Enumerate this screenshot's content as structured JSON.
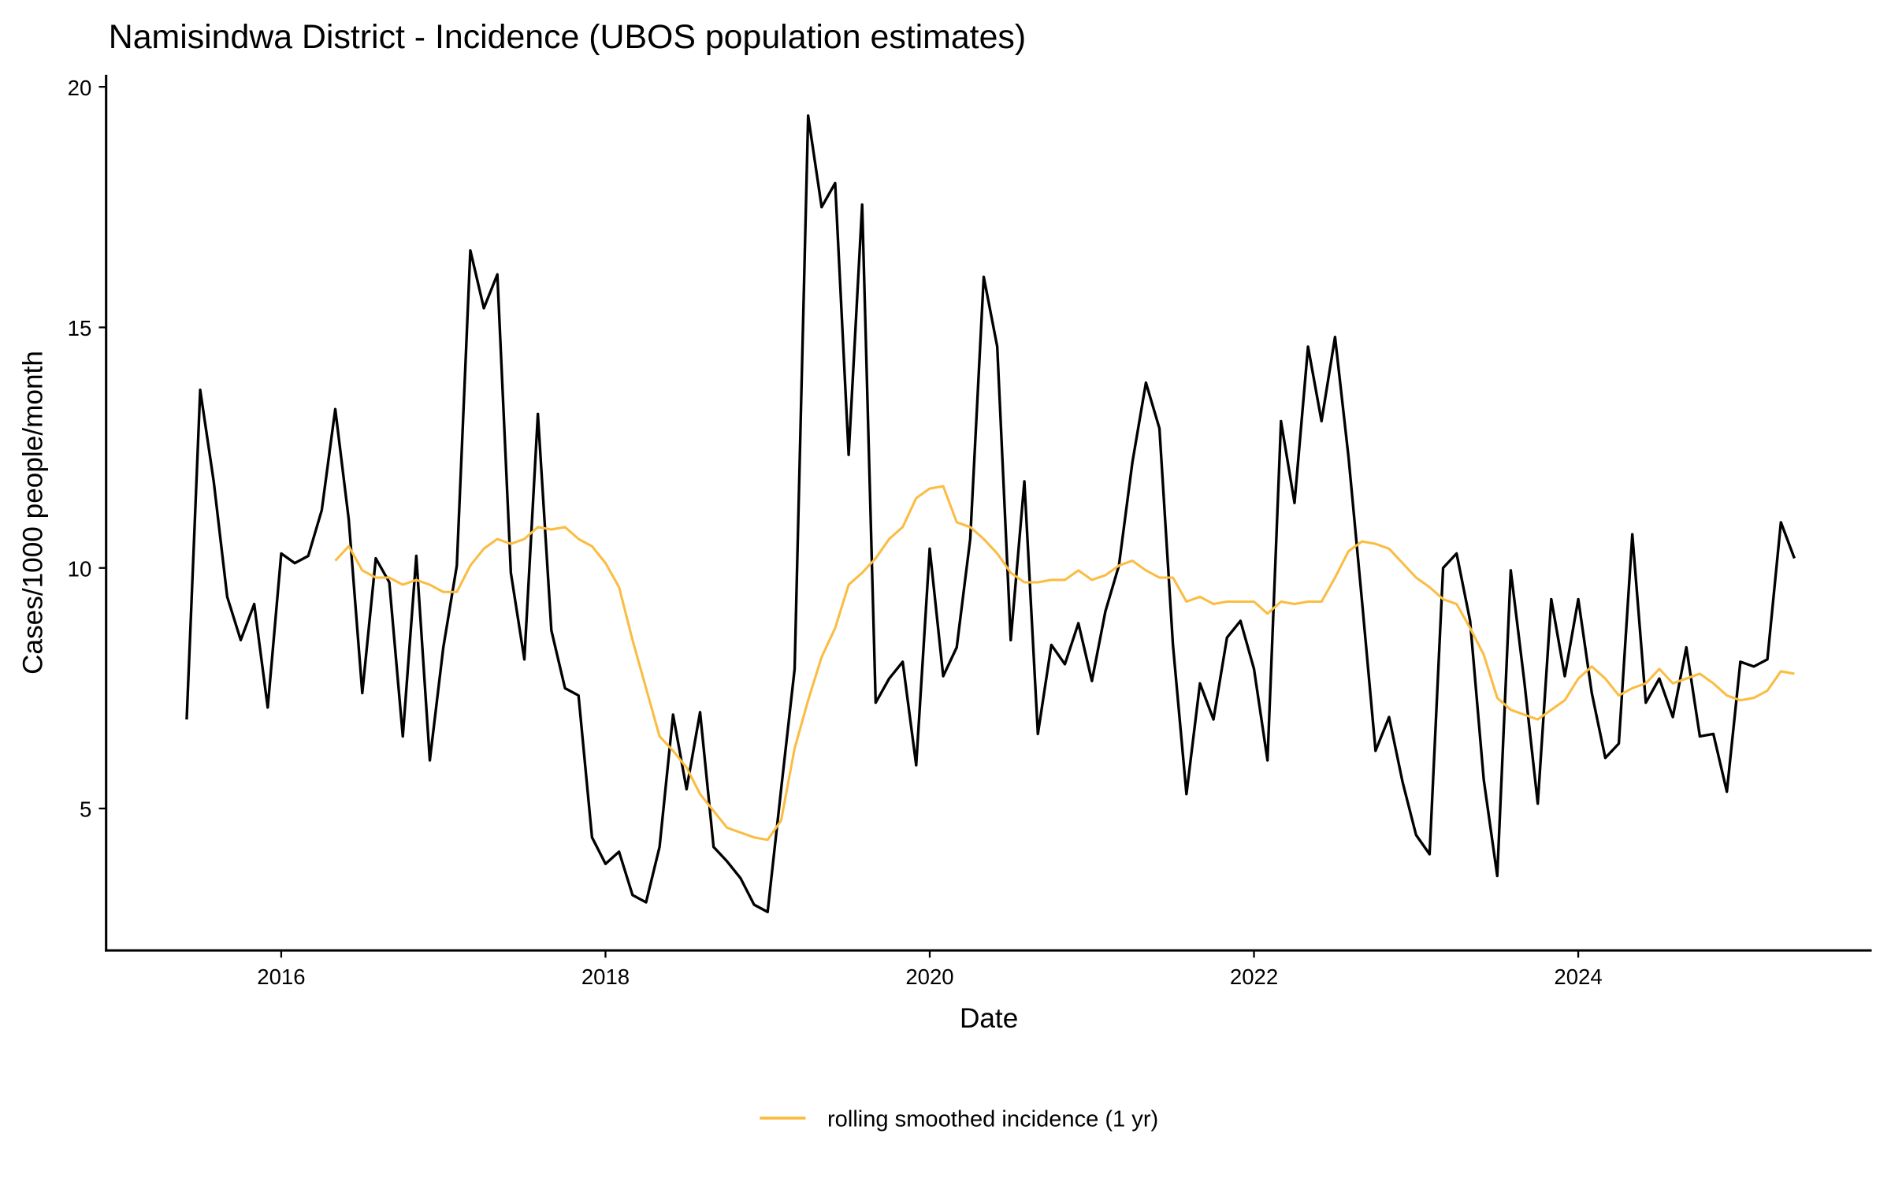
{
  "chart_data": {
    "type": "line",
    "title": "Namisindwa District - Incidence (UBOS population estimates)",
    "xlabel": "Date",
    "ylabel": "Cases/1000 people/month",
    "xlim": [
      2014.92,
      2025.81
    ],
    "ylim": [
      2.05,
      20.25
    ],
    "x_ticks": [
      2016,
      2018,
      2020,
      2022,
      2024
    ],
    "x_tick_labels": [
      "2016",
      "2018",
      "2020",
      "2022",
      "2024"
    ],
    "y_ticks": [
      5,
      10,
      15,
      20
    ],
    "y_tick_labels": [
      "5",
      "10",
      "15",
      "20"
    ],
    "grid": false,
    "legend_position": "bottom",
    "series": [
      {
        "name": "incidence",
        "color": "#000000",
        "in_legend": false,
        "start": "2015-06",
        "frequency": "monthly",
        "values": [
          6.85,
          13.7,
          11.8,
          9.4,
          8.5,
          9.25,
          7.1,
          10.3,
          10.1,
          10.25,
          11.2,
          13.3,
          11.0,
          7.4,
          10.2,
          9.7,
          6.5,
          10.25,
          6.0,
          8.35,
          10.05,
          16.6,
          15.4,
          16.1,
          9.9,
          8.1,
          13.2,
          8.7,
          7.5,
          7.35,
          4.4,
          3.85,
          4.1,
          3.2,
          3.05,
          4.2,
          6.95,
          5.4,
          7.0,
          4.2,
          3.9,
          3.55,
          3.0,
          2.85,
          5.4,
          7.9,
          19.4,
          17.5,
          18.0,
          12.35,
          17.55,
          7.2,
          7.7,
          8.05,
          5.9,
          10.4,
          7.75,
          8.35,
          10.6,
          16.05,
          14.6,
          8.5,
          11.8,
          6.55,
          8.4,
          8.0,
          8.85,
          7.65,
          9.1,
          10.05,
          12.2,
          13.85,
          12.9,
          8.4,
          5.3,
          7.6,
          6.85,
          8.55,
          8.9,
          7.9,
          6.0,
          13.05,
          11.35,
          14.6,
          13.05,
          14.8,
          12.3,
          9.3,
          6.2,
          6.9,
          5.55,
          4.45,
          4.05,
          10.0,
          10.3,
          8.9,
          5.6,
          3.6,
          9.95,
          7.65,
          5.1,
          9.35,
          7.75,
          9.35,
          7.4,
          6.05,
          6.35,
          10.7,
          7.2,
          7.7,
          6.9,
          8.35,
          6.5,
          6.55,
          5.35,
          8.05,
          7.95,
          8.1,
          10.95,
          10.2
        ]
      },
      {
        "name": "rolling smoothed incidence (1 yr)",
        "color": "#FBBC42",
        "in_legend": true,
        "start": "2016-05",
        "frequency": "monthly",
        "values": [
          10.15,
          10.45,
          9.95,
          9.8,
          9.8,
          9.65,
          9.75,
          9.65,
          9.5,
          9.5,
          10.05,
          10.4,
          10.6,
          10.5,
          10.6,
          10.85,
          10.8,
          10.85,
          10.6,
          10.45,
          10.1,
          9.6,
          8.5,
          7.5,
          6.5,
          6.2,
          5.85,
          5.3,
          4.95,
          4.6,
          4.5,
          4.4,
          4.35,
          4.75,
          6.25,
          7.25,
          8.15,
          8.75,
          9.65,
          9.9,
          10.2,
          10.6,
          10.85,
          11.45,
          11.65,
          11.7,
          10.95,
          10.85,
          10.6,
          10.3,
          9.9,
          9.7,
          9.7,
          9.75,
          9.75,
          9.95,
          9.75,
          9.85,
          10.05,
          10.15,
          9.95,
          9.8,
          9.8,
          9.3,
          9.4,
          9.25,
          9.3,
          9.3,
          9.3,
          9.05,
          9.3,
          9.25,
          9.3,
          9.3,
          9.8,
          10.35,
          10.55,
          10.5,
          10.4,
          10.1,
          9.8,
          9.6,
          9.35,
          9.25,
          8.75,
          8.2,
          7.3,
          7.05,
          6.95,
          6.85,
          7.05,
          7.25,
          7.7,
          7.95,
          7.7,
          7.35,
          7.5,
          7.6,
          7.9,
          7.6,
          7.7,
          7.8,
          7.6,
          7.35,
          7.25,
          7.3,
          7.45,
          7.85,
          7.8
        ]
      }
    ]
  }
}
